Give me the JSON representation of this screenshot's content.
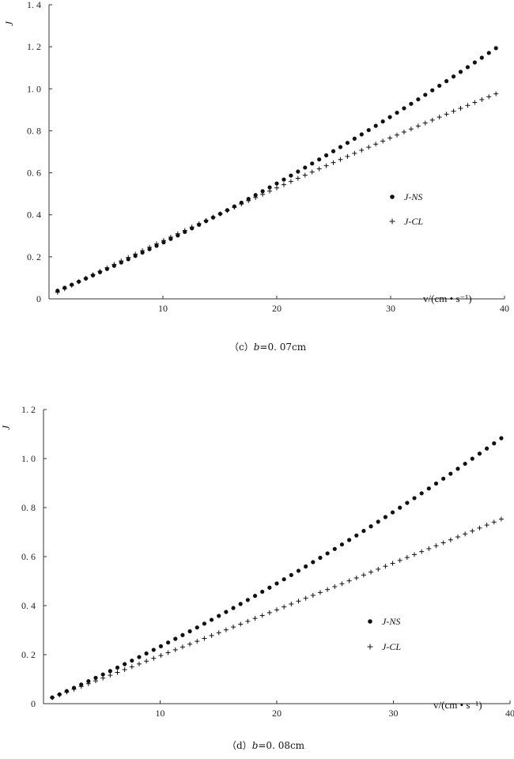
{
  "chart_data": [
    {
      "type": "scatter",
      "panel": "c",
      "caption": {
        "prefix": "（c）",
        "var": "b",
        "value": "=0. 07cm"
      },
      "xlabel": "v/(cm • s⁻¹)",
      "ylabel": "J",
      "xlim": [
        0,
        40
      ],
      "ylim": [
        0,
        1.4
      ],
      "x_ticks": [
        10,
        20,
        30,
        40
      ],
      "x_tick_labels": [
        "10",
        "20",
        "30",
        "40"
      ],
      "y_ticks": [
        0,
        0.2,
        0.4,
        0.6,
        0.8,
        1.0,
        1.2,
        1.4
      ],
      "y_tick_labels": [
        "0",
        "0. 2",
        "0. 4",
        "0. 6",
        "0. 8",
        "1. 0",
        "1. 2",
        "1. 4"
      ],
      "x_range_shown": [
        0.75,
        39.25
      ],
      "n_points": 63,
      "legend": {
        "position": "right-middle"
      },
      "series": [
        {
          "name": "J-NS",
          "marker": "dot",
          "coef": [
            0.0213,
            0.0228,
            0.00018
          ]
        },
        {
          "name": "J-CL",
          "marker": "plus",
          "coef": [
            0.0108,
            0.0272,
            -6.65e-05
          ]
        }
      ]
    },
    {
      "type": "scatter",
      "panel": "d",
      "caption": {
        "prefix": "（d）",
        "var": "b",
        "value": "=0. 08cm"
      },
      "xlabel": "v/(cm • s⁻¹)",
      "ylabel": "J",
      "xlim": [
        0,
        40
      ],
      "ylim": [
        0,
        1.2
      ],
      "x_ticks": [
        10,
        20,
        30,
        40
      ],
      "x_tick_labels": [
        "10",
        "20",
        "30",
        "40"
      ],
      "y_ticks": [
        0,
        0.2,
        0.4,
        0.6,
        0.8,
        1.0,
        1.2
      ],
      "y_tick_labels": [
        "0",
        "0. 2",
        "0. 4",
        "0. 6",
        "0. 8",
        "1. 0",
        "1. 2"
      ],
      "x_range_shown": [
        0.75,
        39.25
      ],
      "n_points": 63,
      "legend": {
        "position": "right-middle"
      },
      "series": [
        {
          "name": "J-NS",
          "marker": "dot",
          "coef": [
            0.0096,
            0.0206,
            0.000172
          ]
        },
        {
          "name": "J-CL",
          "marker": "plus",
          "coef": [
            0.0108,
            0.0183,
            1.55e-05
          ]
        }
      ]
    }
  ]
}
